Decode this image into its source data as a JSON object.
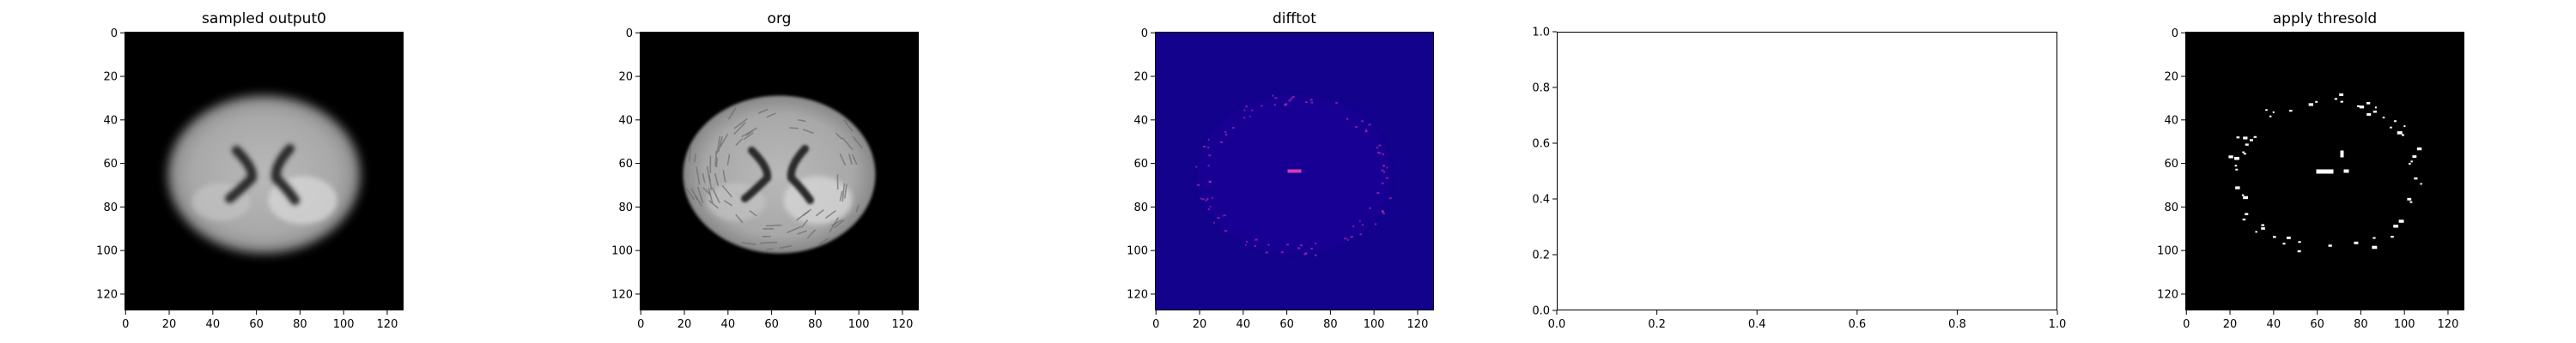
{
  "figure": {
    "panels": [
      {
        "title": "sampled output0",
        "kind": "image",
        "image": "brain-mri-slice-blurred",
        "xticks": [
          "0",
          "20",
          "40",
          "60",
          "80",
          "100",
          "120"
        ],
        "yticks": [
          "0",
          "20",
          "40",
          "60",
          "80",
          "100",
          "120"
        ]
      },
      {
        "title": "org",
        "kind": "image",
        "image": "brain-mri-slice-original",
        "xticks": [
          "0",
          "20",
          "40",
          "60",
          "80",
          "100",
          "120"
        ],
        "yticks": [
          "0",
          "20",
          "40",
          "60",
          "80",
          "100",
          "120"
        ]
      },
      {
        "title": "difftot",
        "kind": "image",
        "image": "difference-heatmap-plasma",
        "xticks": [
          "0",
          "20",
          "40",
          "60",
          "80",
          "100",
          "120"
        ],
        "yticks": [
          "0",
          "20",
          "40",
          "60",
          "80",
          "100",
          "120"
        ]
      },
      {
        "title": "",
        "kind": "empty-axes",
        "xticks": [
          "0.0",
          "0.2",
          "0.4",
          "0.6",
          "0.8",
          "1.0"
        ],
        "yticks": [
          "0.0",
          "0.2",
          "0.4",
          "0.6",
          "0.8",
          "1.0"
        ]
      },
      {
        "title": "apply thresold",
        "kind": "image",
        "image": "binary-threshold-mask",
        "xticks": [
          "0",
          "20",
          "40",
          "60",
          "80",
          "100",
          "120"
        ],
        "yticks": [
          "0",
          "20",
          "40",
          "60",
          "80",
          "100",
          "120"
        ]
      }
    ],
    "colors": {
      "background": "#000000",
      "heatmap_base": "#13028c",
      "heatmap_hot": "#d63bb6",
      "mask_on": "#ffffff"
    }
  }
}
